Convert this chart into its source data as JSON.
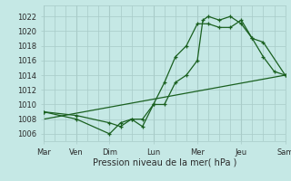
{
  "xlabel": "Pression niveau de la mer( hPa )",
  "bg_color": "#c5e8e5",
  "grid_color": "#a8cbc8",
  "line_color": "#1a6020",
  "ylim": [
    1005,
    1023.5
  ],
  "xlim": [
    0,
    22
  ],
  "yticks": [
    1006,
    1008,
    1010,
    1012,
    1014,
    1016,
    1018,
    1020,
    1022
  ],
  "xtick_positions": [
    0,
    3,
    6,
    10,
    14,
    18,
    22
  ],
  "xtick_labels": [
    "Mar",
    "Ven",
    "Dim",
    "Lun",
    "Mer",
    "Jeu",
    "Sam"
  ],
  "line1_x": [
    0,
    3,
    6,
    7,
    8,
    9,
    10,
    11,
    12,
    13,
    14,
    15,
    16,
    17,
    18,
    19,
    20,
    22
  ],
  "line1_y": [
    1009,
    1008,
    1006,
    1007.5,
    1008,
    1008,
    1010,
    1013,
    1016.5,
    1018,
    1021,
    1021,
    1020.5,
    1020.5,
    1021.5,
    1019,
    1018.5,
    1014
  ],
  "line2_x": [
    0,
    3,
    6,
    7,
    8,
    9,
    10,
    11,
    12,
    13,
    14,
    14.5,
    15,
    16,
    17,
    18,
    19,
    20,
    21,
    22
  ],
  "line2_y": [
    1009,
    1008.5,
    1007.5,
    1007,
    1008,
    1007,
    1010,
    1010,
    1013,
    1014,
    1016,
    1021.5,
    1022,
    1021.5,
    1022,
    1021,
    1019,
    1016.5,
    1014.5,
    1014
  ],
  "line3_x": [
    0,
    22
  ],
  "line3_y": [
    1008,
    1014
  ]
}
